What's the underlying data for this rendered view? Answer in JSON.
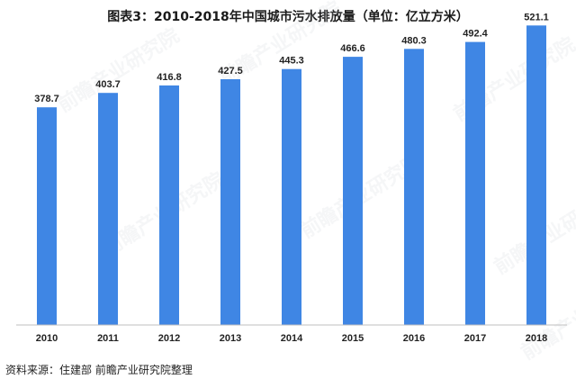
{
  "title": "图表3：2010-2018年中国城市污水排放量（单位：亿立方米）",
  "source": "资料来源：住建部 前瞻产业研究院整理",
  "watermark": "前瞻产业研究院",
  "colors": {
    "bar": "#3f86e4",
    "axis": "#bfbfbf"
  },
  "chart_data": {
    "type": "bar",
    "title": "图表3：2010-2018年中国城市污水排放量（单位：亿立方米）",
    "xlabel": "",
    "ylabel": "",
    "categories": [
      "2010",
      "2011",
      "2012",
      "2013",
      "2014",
      "2015",
      "2016",
      "2017",
      "2018"
    ],
    "values": [
      378.7,
      403.7,
      416.8,
      427.5,
      445.3,
      466.6,
      480.3,
      492.4,
      521.1
    ],
    "value_labels": [
      "378.7",
      "403.7",
      "416.8",
      "427.5",
      "445.3",
      "466.6",
      "480.3",
      "492.4",
      "521.1"
    ],
    "ylim": [
      0,
      550
    ],
    "grid": false,
    "legend": "none"
  }
}
